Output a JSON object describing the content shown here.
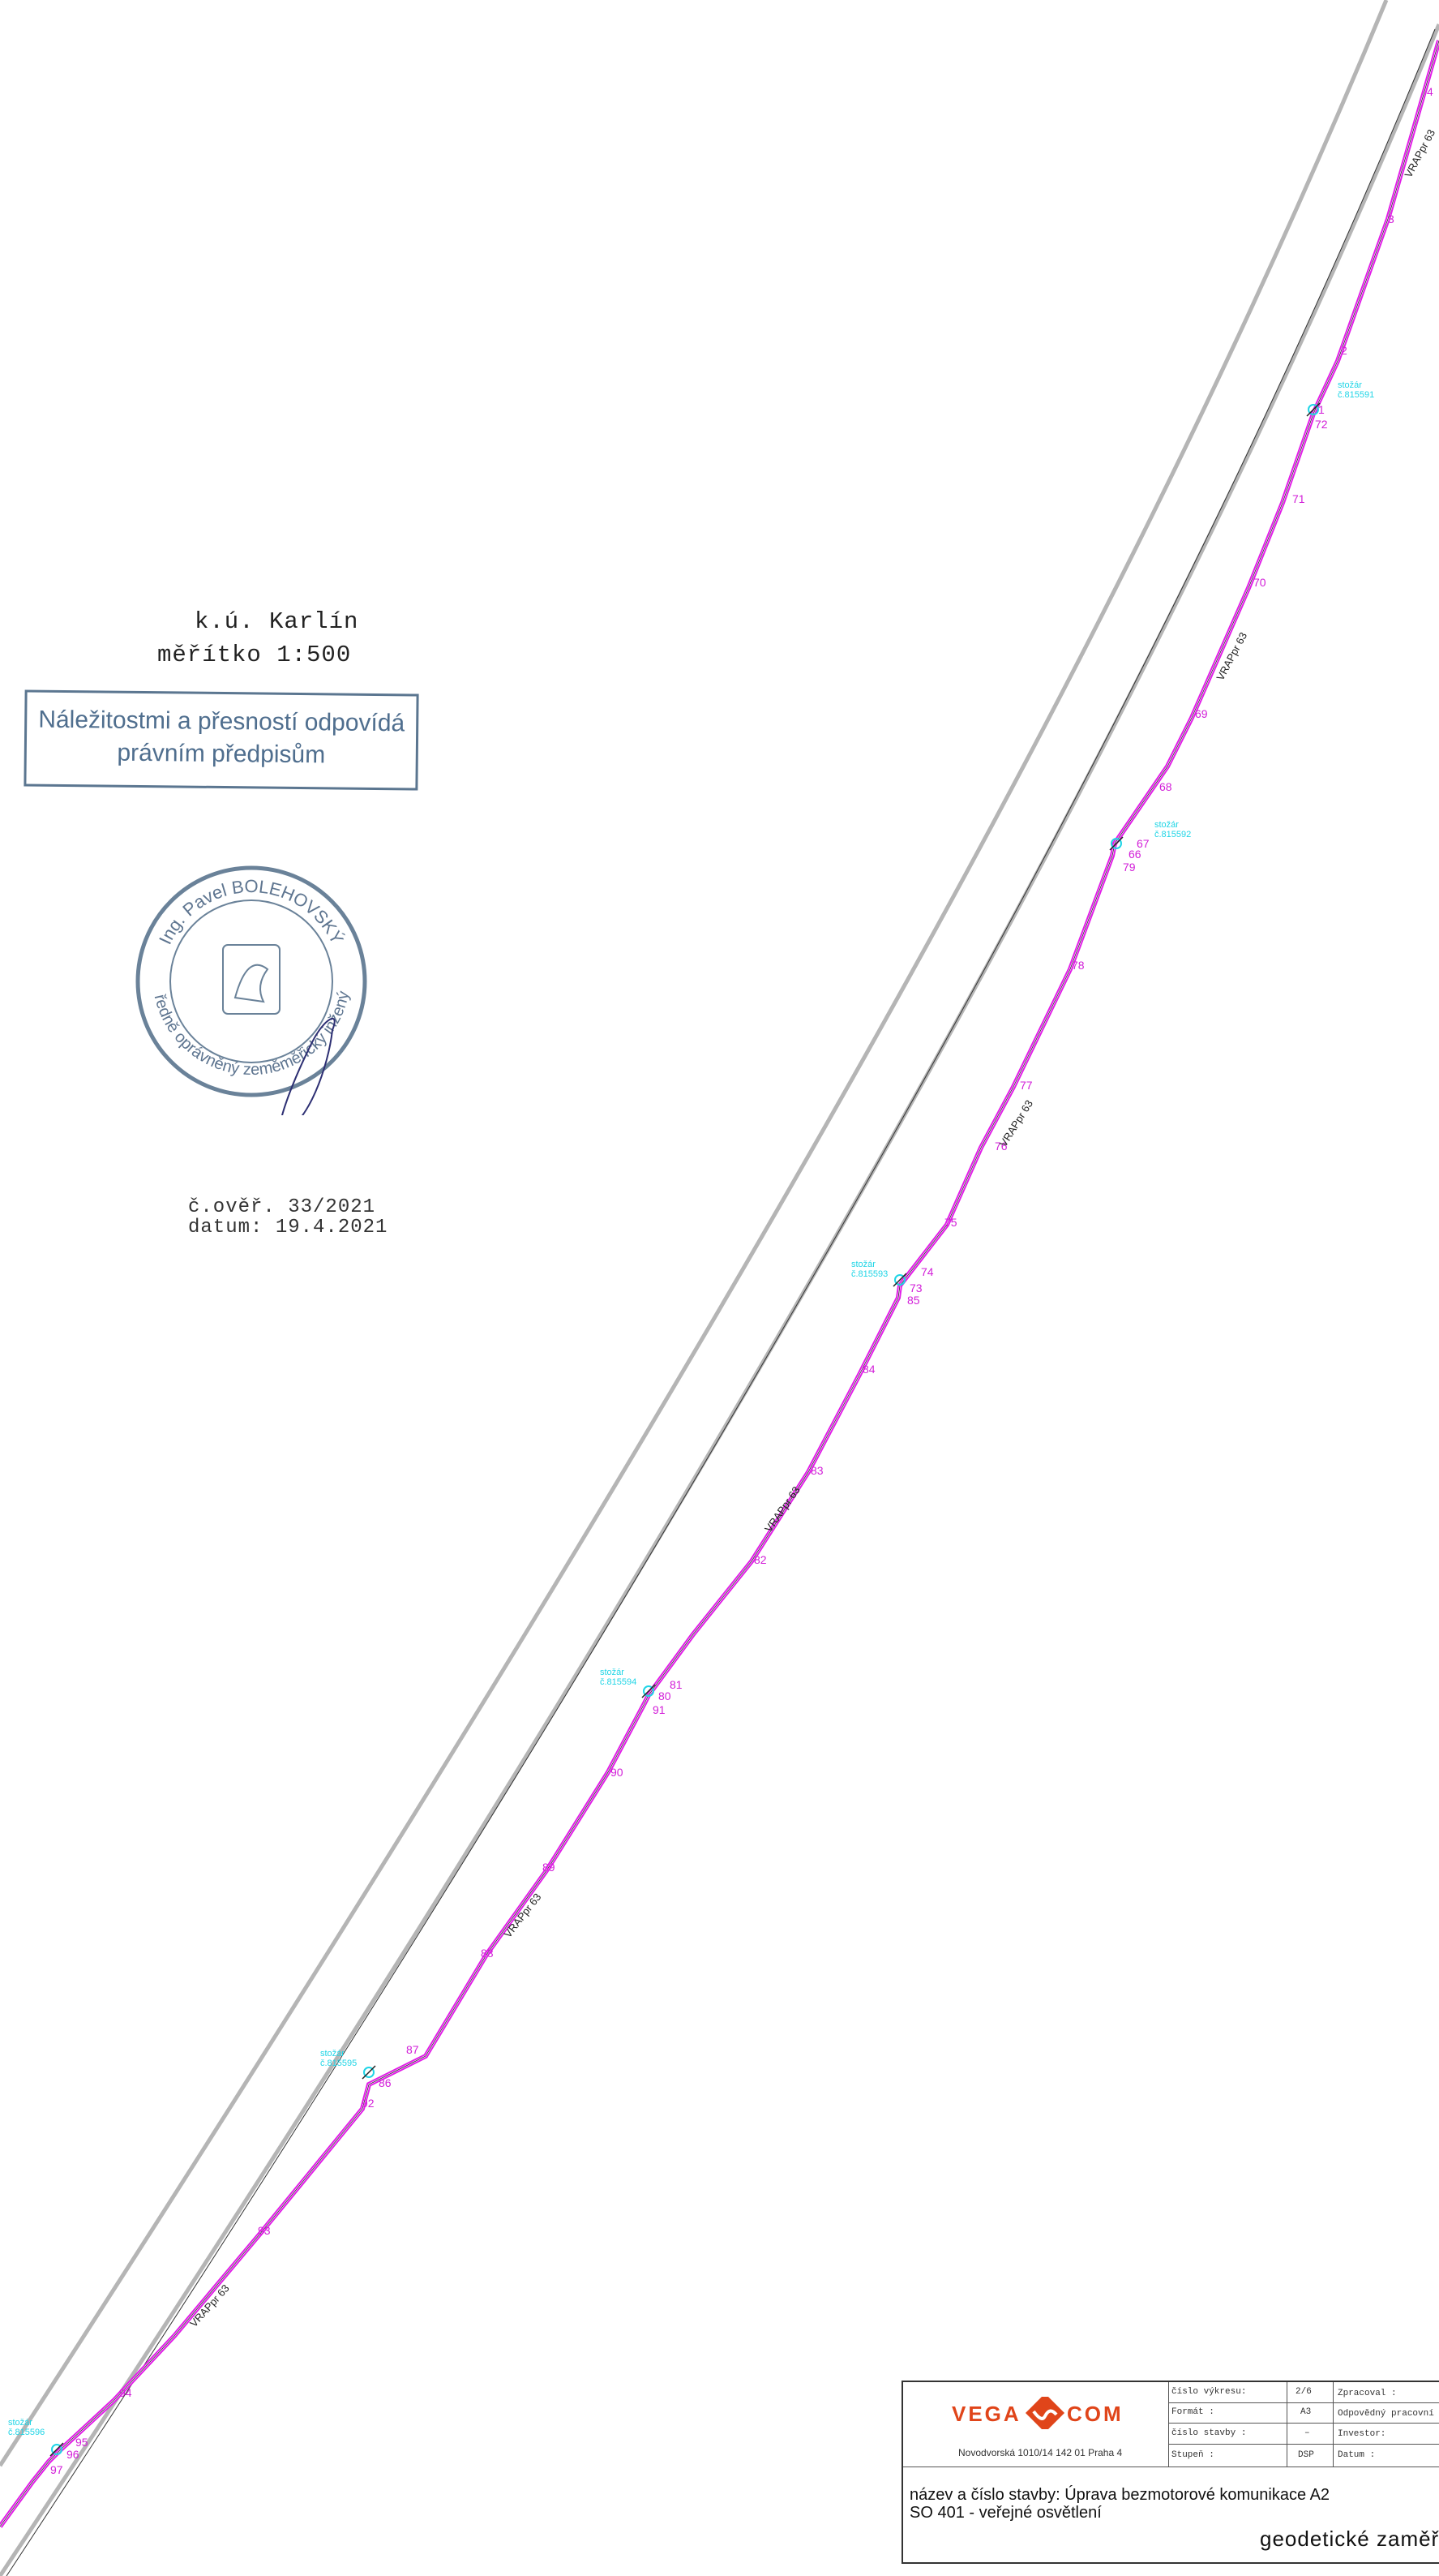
{
  "location": {
    "cadastral_area": "k.ú. Karlín",
    "scale": "měřítko 1:500"
  },
  "stamp": {
    "line1": "Náležitostmi a přesností odpovídá",
    "line2": "právním předpisům"
  },
  "seal": {
    "name": "Ing. Pavel BOLEHOVSKÝ",
    "role": "úředně oprávněný zeměměřický inženýr"
  },
  "verification": {
    "number": "č.ověř. 33/2021",
    "date": "datum: 19.4.2021"
  },
  "line_label": "VRAPpr 63",
  "boundary_points": [
    "4",
    "3",
    "2",
    "1",
    "72",
    "71",
    "70",
    "69",
    "68",
    "67",
    "66",
    "79",
    "78",
    "77",
    "76",
    "75",
    "74",
    "73",
    "85",
    "84",
    "83",
    "82",
    "81",
    "80",
    "91",
    "90",
    "89",
    "88",
    "87",
    "86",
    "92",
    "93",
    "94",
    "95",
    "96",
    "97"
  ],
  "poles": [
    {
      "label": "stožár",
      "id": "č.815591"
    },
    {
      "label": "stožár",
      "id": "č.815592"
    },
    {
      "label": "stožár",
      "id": "č.815593"
    },
    {
      "label": "stožár",
      "id": "č.815594"
    },
    {
      "label": "stožár",
      "id": "č.815595"
    },
    {
      "label": "stožár",
      "id": "č.815596"
    }
  ],
  "titleblock": {
    "company": {
      "name_left": "VEGA",
      "name_right": "COM",
      "address": "Novodvorská 1010/14 142 01 Praha 4"
    },
    "fields": {
      "drawing_number_label": "číslo výkresu:",
      "drawing_number_value": "2/6",
      "format_label": "Formát :",
      "format_value": "A3",
      "construction_number_label": "číslo stavby :",
      "construction_number_value": "–",
      "stage_label": "Stupeň :",
      "stage_value": "DSP",
      "prepared_label": "Zpracoval :",
      "responsible_label": "Odpovědný pracovní",
      "investor_label": "Investor:",
      "date_label": "Datum :"
    },
    "project_name": "název a číslo stavby: Úprava bezmotorové komunikace A2",
    "project_object": "SO 401 - veřejné osvětlení",
    "drawing_title": "geodetické zaměře"
  },
  "colors": {
    "road_edge": "#b5b5b5",
    "cable": "#e21ee8",
    "point_label": "#d21ed8",
    "pole": "#1fd5e6",
    "stamp": "#4f6e8e",
    "logo": "#e0451a"
  }
}
